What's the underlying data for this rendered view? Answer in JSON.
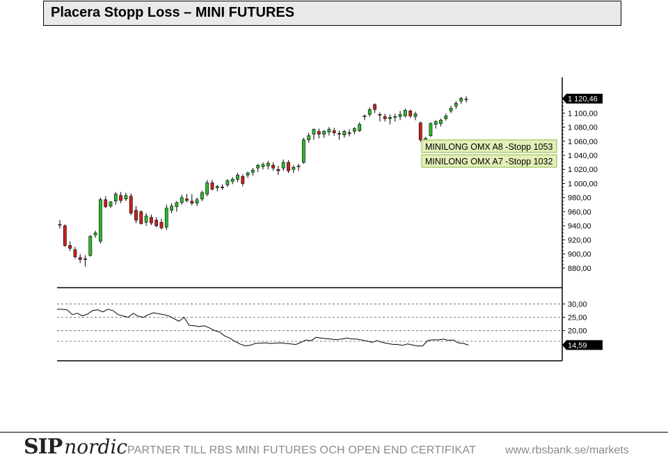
{
  "title": "Placera Stopp Loss – MINI FUTURES",
  "footer": {
    "logo_sip": "SIP",
    "logo_nordic": "nordic",
    "tagline": "PARTNER TILL RBS MINI FUTURES OCH OPEN END CERTIFIKAT",
    "url": "www.rbsbank.se/markets"
  },
  "colors": {
    "up": "#2eb82e",
    "down": "#cc1f1f",
    "label_bg": "#e3efb8",
    "label_border": "#8cb84a"
  },
  "chart_data": [
    {
      "type": "candlestick",
      "ylim": [
        865,
        1130
      ],
      "yticks": [
        880,
        900,
        920,
        940,
        960,
        980,
        1000,
        1020,
        1040,
        1060,
        1080,
        1100
      ],
      "ytick_labels": [
        "880,00",
        "900,00",
        "920,00",
        "940,00",
        "960,00",
        "980,00",
        "1 000,00",
        "1 020,00",
        "1 040,00",
        "1 060,00",
        "1 080,00",
        "1 100,00"
      ],
      "last_value": 1120.46,
      "last_label": "1 120,46",
      "annotations": [
        {
          "text": "MINILONG OMX A8 -Stopp 1053",
          "value": 1053
        },
        {
          "text": "MINILONG OMX A7 -Stopp 1032",
          "value": 1032
        }
      ],
      "candles": [
        {
          "o": 942,
          "h": 948,
          "l": 936,
          "c": 941
        },
        {
          "o": 940,
          "h": 942,
          "l": 910,
          "c": 912
        },
        {
          "o": 912,
          "h": 918,
          "l": 904,
          "c": 908
        },
        {
          "o": 906,
          "h": 910,
          "l": 893,
          "c": 896
        },
        {
          "o": 895,
          "h": 900,
          "l": 887,
          "c": 892
        },
        {
          "o": 893,
          "h": 898,
          "l": 882,
          "c": 893
        },
        {
          "o": 898,
          "h": 927,
          "l": 896,
          "c": 925
        },
        {
          "o": 927,
          "h": 933,
          "l": 923,
          "c": 930
        },
        {
          "o": 918,
          "h": 980,
          "l": 915,
          "c": 977
        },
        {
          "o": 977,
          "h": 982,
          "l": 965,
          "c": 967
        },
        {
          "o": 968,
          "h": 975,
          "l": 965,
          "c": 974
        },
        {
          "o": 975,
          "h": 988,
          "l": 970,
          "c": 985
        },
        {
          "o": 983,
          "h": 988,
          "l": 972,
          "c": 976
        },
        {
          "o": 978,
          "h": 987,
          "l": 975,
          "c": 983
        },
        {
          "o": 982,
          "h": 986,
          "l": 955,
          "c": 958
        },
        {
          "o": 962,
          "h": 968,
          "l": 944,
          "c": 948
        },
        {
          "o": 960,
          "h": 962,
          "l": 942,
          "c": 943
        },
        {
          "o": 945,
          "h": 958,
          "l": 940,
          "c": 954
        },
        {
          "o": 952,
          "h": 956,
          "l": 941,
          "c": 944
        },
        {
          "o": 948,
          "h": 952,
          "l": 938,
          "c": 940
        },
        {
          "o": 945,
          "h": 950,
          "l": 935,
          "c": 937
        },
        {
          "o": 938,
          "h": 970,
          "l": 934,
          "c": 965
        },
        {
          "o": 962,
          "h": 972,
          "l": 958,
          "c": 968
        },
        {
          "o": 967,
          "h": 975,
          "l": 960,
          "c": 973
        },
        {
          "o": 973,
          "h": 984,
          "l": 970,
          "c": 980
        },
        {
          "o": 978,
          "h": 985,
          "l": 973,
          "c": 976
        },
        {
          "o": 975,
          "h": 985,
          "l": 969,
          "c": 972
        },
        {
          "o": 972,
          "h": 980,
          "l": 968,
          "c": 977
        },
        {
          "o": 978,
          "h": 990,
          "l": 975,
          "c": 987
        },
        {
          "o": 985,
          "h": 1005,
          "l": 982,
          "c": 1001
        },
        {
          "o": 1001,
          "h": 1005,
          "l": 990,
          "c": 992
        },
        {
          "o": 994,
          "h": 998,
          "l": 989,
          "c": 996
        },
        {
          "o": 995,
          "h": 999,
          "l": 991,
          "c": 994
        },
        {
          "o": 998,
          "h": 1006,
          "l": 995,
          "c": 1004
        },
        {
          "o": 1003,
          "h": 1009,
          "l": 999,
          "c": 1006
        },
        {
          "o": 1006,
          "h": 1015,
          "l": 1002,
          "c": 1012
        },
        {
          "o": 1010,
          "h": 1013,
          "l": 996,
          "c": 1000
        },
        {
          "o": 1012,
          "h": 1017,
          "l": 1008,
          "c": 1015
        },
        {
          "o": 1016,
          "h": 1022,
          "l": 1011,
          "c": 1019
        },
        {
          "o": 1022,
          "h": 1028,
          "l": 1016,
          "c": 1026
        },
        {
          "o": 1024,
          "h": 1030,
          "l": 1020,
          "c": 1027
        },
        {
          "o": 1025,
          "h": 1032,
          "l": 1020,
          "c": 1029
        },
        {
          "o": 1026,
          "h": 1030,
          "l": 1018,
          "c": 1022
        },
        {
          "o": 1020,
          "h": 1025,
          "l": 1012,
          "c": 1018
        },
        {
          "o": 1022,
          "h": 1034,
          "l": 1018,
          "c": 1030
        },
        {
          "o": 1030,
          "h": 1033,
          "l": 1015,
          "c": 1018
        },
        {
          "o": 1020,
          "h": 1026,
          "l": 1015,
          "c": 1023
        },
        {
          "o": 1025,
          "h": 1028,
          "l": 1018,
          "c": 1025
        },
        {
          "o": 1030,
          "h": 1065,
          "l": 1028,
          "c": 1062
        },
        {
          "o": 1062,
          "h": 1072,
          "l": 1058,
          "c": 1068
        },
        {
          "o": 1070,
          "h": 1078,
          "l": 1062,
          "c": 1077
        },
        {
          "o": 1074,
          "h": 1078,
          "l": 1064,
          "c": 1070
        },
        {
          "o": 1070,
          "h": 1076,
          "l": 1065,
          "c": 1074
        },
        {
          "o": 1073,
          "h": 1080,
          "l": 1068,
          "c": 1077
        },
        {
          "o": 1075,
          "h": 1079,
          "l": 1068,
          "c": 1072
        },
        {
          "o": 1071,
          "h": 1075,
          "l": 1062,
          "c": 1070
        },
        {
          "o": 1069,
          "h": 1076,
          "l": 1065,
          "c": 1074
        },
        {
          "o": 1072,
          "h": 1077,
          "l": 1067,
          "c": 1071
        },
        {
          "o": 1074,
          "h": 1080,
          "l": 1070,
          "c": 1078
        },
        {
          "o": 1075,
          "h": 1087,
          "l": 1073,
          "c": 1084
        },
        {
          "o": 1095,
          "h": 1098,
          "l": 1090,
          "c": 1096
        },
        {
          "o": 1098,
          "h": 1108,
          "l": 1095,
          "c": 1105
        },
        {
          "o": 1112,
          "h": 1114,
          "l": 1100,
          "c": 1105
        },
        {
          "o": 1098,
          "h": 1101,
          "l": 1088,
          "c": 1097
        },
        {
          "o": 1095,
          "h": 1099,
          "l": 1088,
          "c": 1092
        },
        {
          "o": 1092,
          "h": 1098,
          "l": 1084,
          "c": 1094
        },
        {
          "o": 1094,
          "h": 1099,
          "l": 1088,
          "c": 1095
        },
        {
          "o": 1095,
          "h": 1103,
          "l": 1090,
          "c": 1098
        },
        {
          "o": 1096,
          "h": 1106,
          "l": 1094,
          "c": 1104
        },
        {
          "o": 1103,
          "h": 1105,
          "l": 1093,
          "c": 1096
        },
        {
          "o": 1095,
          "h": 1102,
          "l": 1090,
          "c": 1099
        },
        {
          "o": 1086,
          "h": 1088,
          "l": 1059,
          "c": 1062
        },
        {
          "o": 1060,
          "h": 1066,
          "l": 1056,
          "c": 1064
        },
        {
          "o": 1068,
          "h": 1087,
          "l": 1066,
          "c": 1085
        },
        {
          "o": 1084,
          "h": 1090,
          "l": 1078,
          "c": 1088
        },
        {
          "o": 1085,
          "h": 1092,
          "l": 1081,
          "c": 1090
        },
        {
          "o": 1092,
          "h": 1099,
          "l": 1089,
          "c": 1096
        },
        {
          "o": 1103,
          "h": 1110,
          "l": 1100,
          "c": 1107
        },
        {
          "o": 1110,
          "h": 1117,
          "l": 1106,
          "c": 1114
        },
        {
          "o": 1117,
          "h": 1123,
          "l": 1113,
          "c": 1121
        },
        {
          "o": 1120,
          "h": 1124,
          "l": 1115,
          "c": 1120
        }
      ]
    },
    {
      "type": "line",
      "ylim": [
        10,
        34
      ],
      "yticks": [
        20,
        25,
        30
      ],
      "ytick_labels": [
        "20,00",
        "25,00",
        "30,00"
      ],
      "gridlines": [
        16,
        20,
        25,
        30
      ],
      "last_value": 14.59,
      "last_label": "14,59",
      "values": [
        28,
        28,
        27.8,
        26,
        26.5,
        25.5,
        26.2,
        27.5,
        27.8,
        27,
        28,
        27.5,
        26,
        25.5,
        25,
        26.5,
        25.4,
        25,
        26,
        26.7,
        26.3,
        26,
        25.5,
        24.5,
        23.5,
        25,
        22,
        21.8,
        21.5,
        21.8,
        21,
        20,
        19.5,
        18,
        17.2,
        16,
        15,
        14.3,
        14.5,
        15.2,
        15.3,
        15.4,
        15.2,
        15.3,
        15.4,
        15.2,
        15,
        14.8,
        15.6,
        16.5,
        16.2,
        17.5,
        17.2,
        17,
        16.8,
        16.6,
        16.8,
        17.2,
        16.9,
        16.8,
        16.5,
        16.1,
        15.6,
        16.2,
        15.6,
        15.2,
        14.9,
        14.8,
        14.5,
        15,
        14.6,
        14.2,
        14.3,
        16.3,
        16.6,
        16.5,
        16.8,
        16.4,
        16.5,
        15.4,
        15.2,
        14.6
      ]
    }
  ]
}
